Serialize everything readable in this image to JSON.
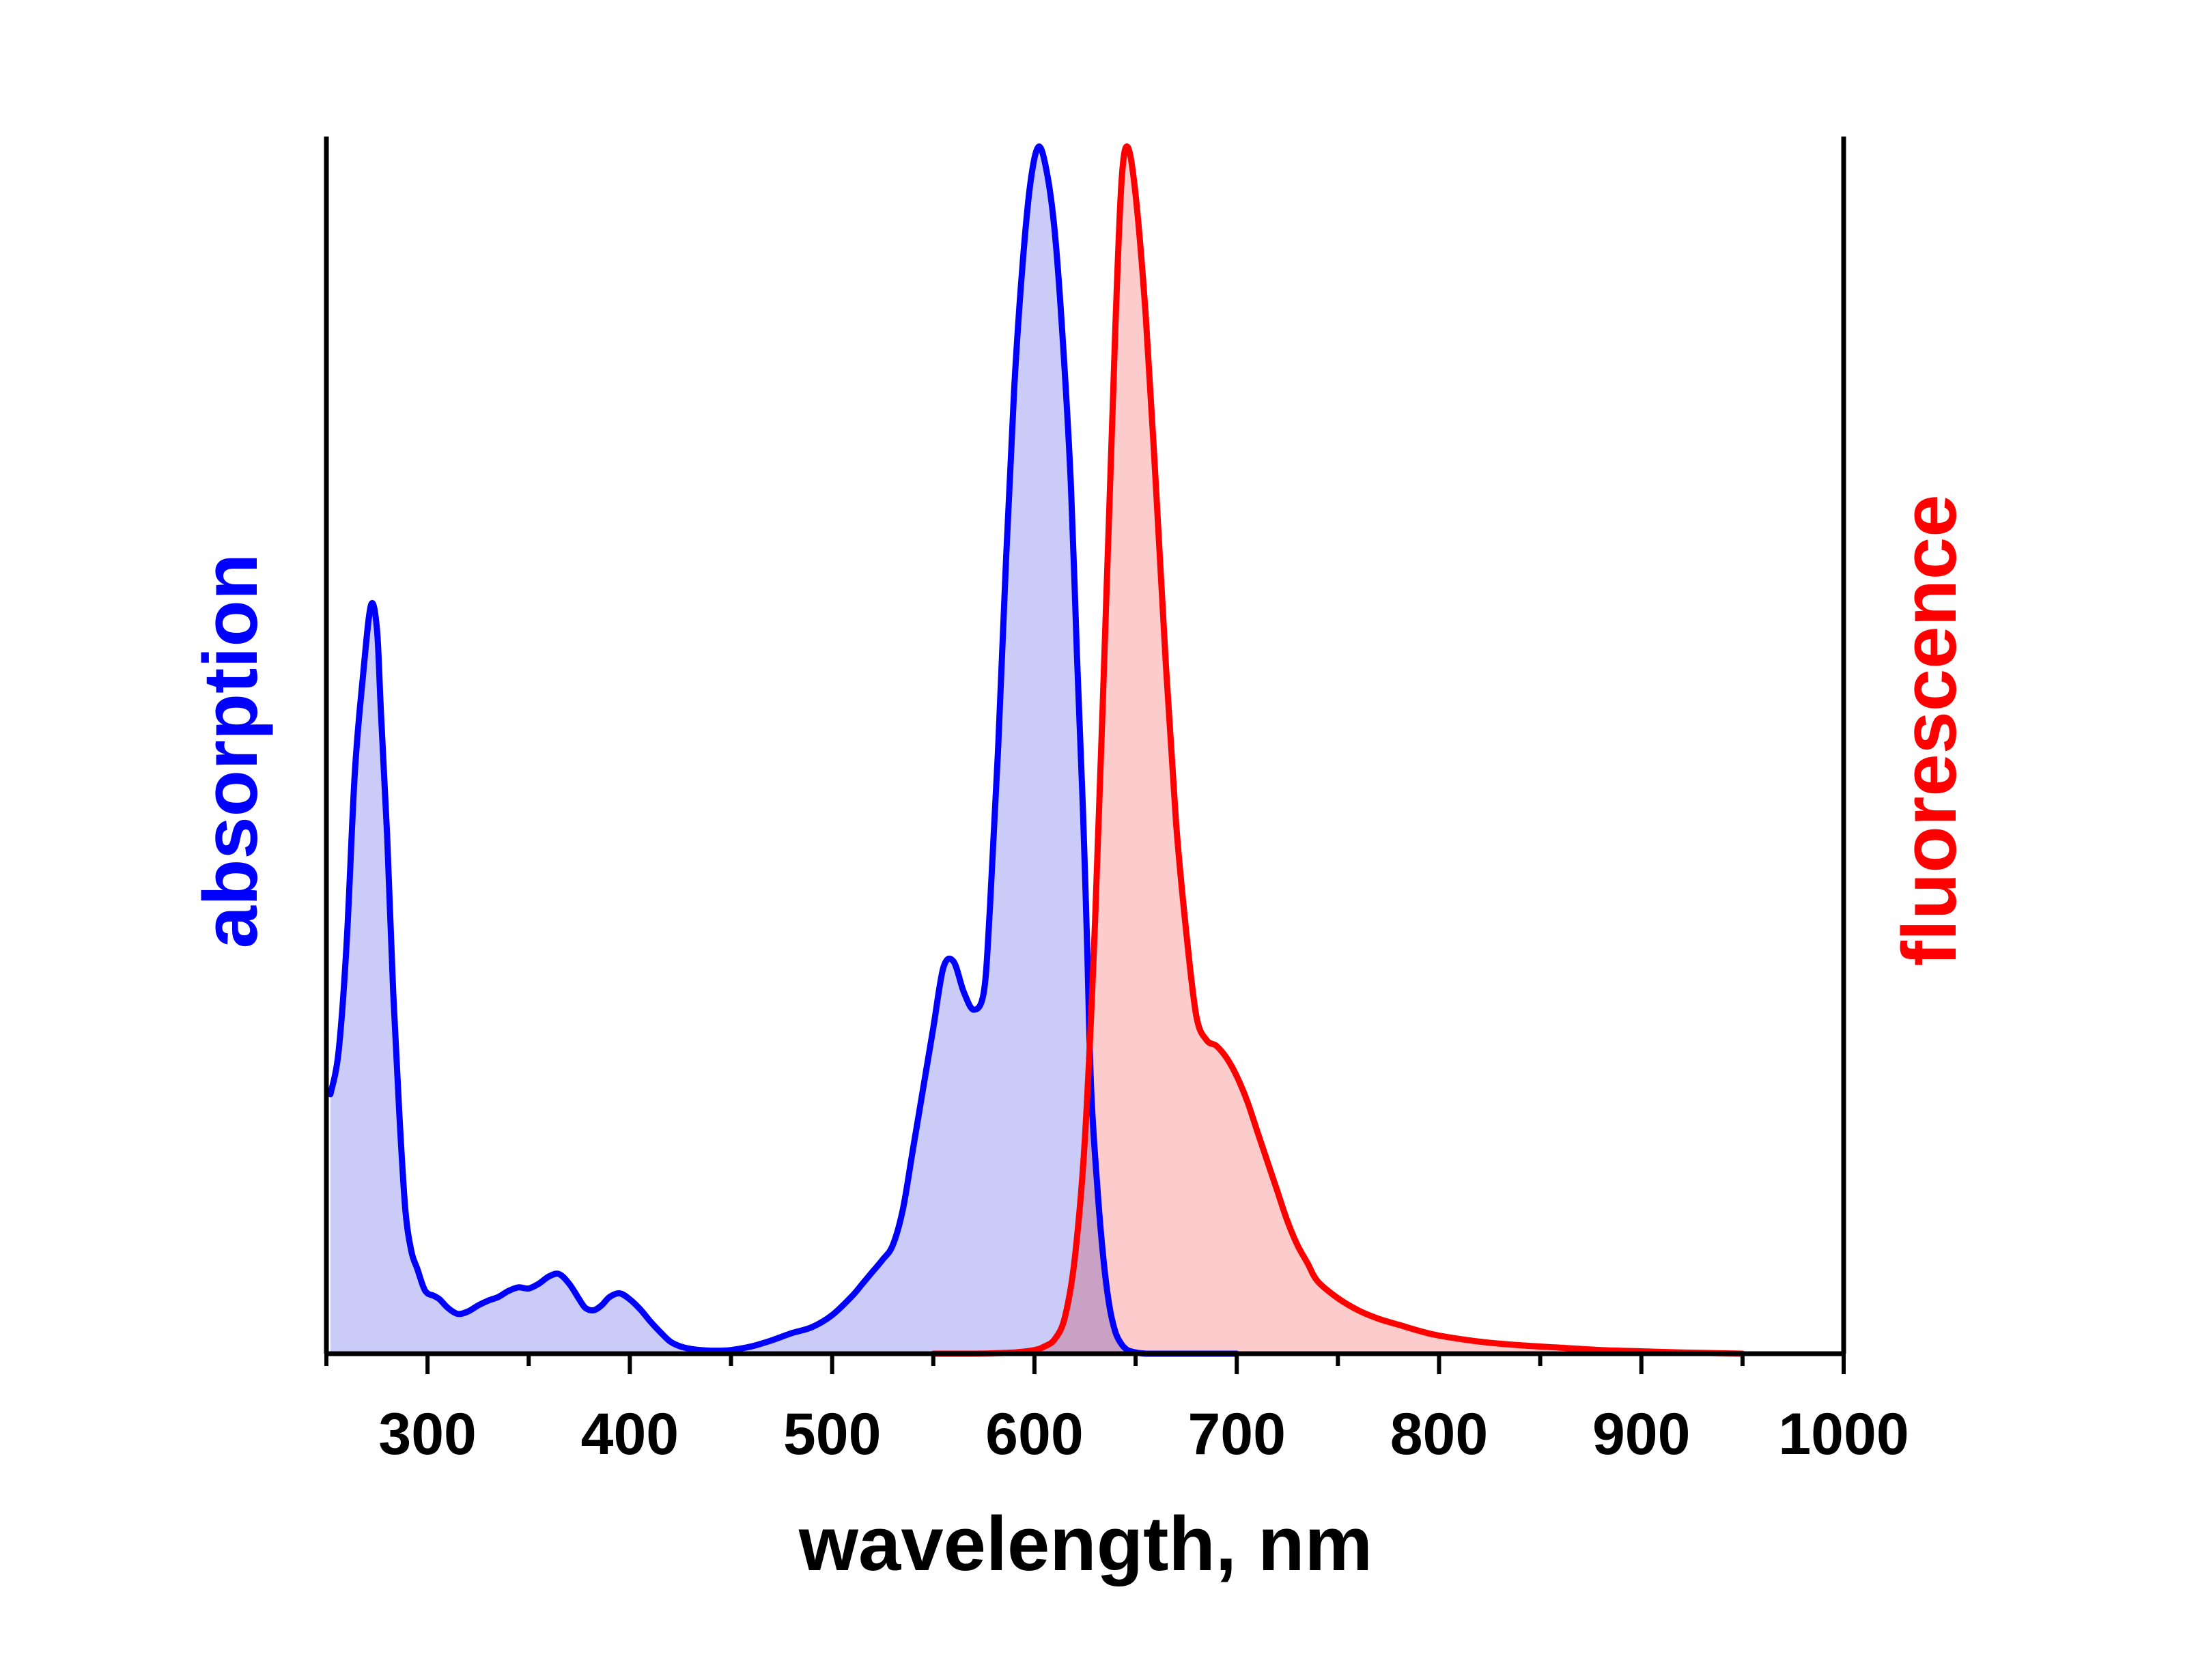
{
  "chart_data": {
    "type": "area",
    "xlabel": "wavelength, nm",
    "ylabel_left": "absorption",
    "ylabel_right": "fluorescence",
    "xlim": [
      250,
      1000
    ],
    "ylim": [
      0,
      1
    ],
    "x_ticks": [
      300,
      400,
      500,
      600,
      700,
      800,
      900,
      1000
    ],
    "y_ticks_shown": false,
    "grid": false,
    "series": [
      {
        "name": "absorption",
        "color": "#0000ff",
        "fill": "#c8c8f8",
        "x": [
          252,
          256,
          260,
          264,
          268,
          272,
          275,
          277,
          280,
          283,
          286,
          289,
          292,
          295,
          298,
          300,
          303,
          306,
          310,
          315,
          320,
          325,
          330,
          335,
          340,
          345,
          350,
          355,
          360,
          365,
          370,
          375,
          378,
          382,
          386,
          390,
          395,
          400,
          405,
          410,
          415,
          420,
          425,
          430,
          435,
          440,
          445,
          450,
          460,
          470,
          480,
          490,
          500,
          510,
          515,
          520,
          525,
          530,
          535,
          540,
          545,
          550,
          555,
          560,
          565,
          570,
          575,
          578,
          582,
          586,
          590,
          594,
          598,
          602,
          606,
          610,
          614,
          618,
          621,
          624,
          626,
          628,
          631,
          634,
          637,
          640,
          643,
          646,
          650,
          655,
          660,
          665,
          670,
          675,
          680,
          685,
          690,
          695,
          700
        ],
        "values": [
          0.215,
          0.25,
          0.34,
          0.48,
          0.56,
          0.62,
          0.6,
          0.53,
          0.43,
          0.3,
          0.2,
          0.12,
          0.085,
          0.07,
          0.055,
          0.05,
          0.048,
          0.045,
          0.038,
          0.033,
          0.035,
          0.04,
          0.044,
          0.047,
          0.052,
          0.055,
          0.054,
          0.058,
          0.064,
          0.066,
          0.058,
          0.045,
          0.038,
          0.036,
          0.04,
          0.047,
          0.05,
          0.045,
          0.037,
          0.027,
          0.018,
          0.01,
          0.006,
          0.004,
          0.003,
          0.0025,
          0.0025,
          0.003,
          0.006,
          0.011,
          0.017,
          0.022,
          0.032,
          0.048,
          0.058,
          0.068,
          0.078,
          0.09,
          0.12,
          0.17,
          0.22,
          0.27,
          0.32,
          0.325,
          0.3,
          0.285,
          0.3,
          0.37,
          0.5,
          0.66,
          0.8,
          0.9,
          0.97,
          1.0,
          0.98,
          0.93,
          0.84,
          0.72,
          0.58,
          0.45,
          0.34,
          0.22,
          0.14,
          0.08,
          0.04,
          0.018,
          0.008,
          0.003,
          0.001,
          0.0,
          0.0,
          0.0,
          0.0,
          0.0,
          0.0,
          0.0,
          0.0,
          0.0,
          0.0
        ]
      },
      {
        "name": "fluorescence",
        "color": "#ff0000",
        "fill": "#fcc8c8",
        "x": [
          550,
          570,
          590,
          600,
          605,
          610,
          615,
          620,
          625,
          630,
          635,
          640,
          643,
          646,
          650,
          655,
          660,
          665,
          670,
          675,
          680,
          685,
          690,
          695,
          700,
          705,
          710,
          715,
          720,
          725,
          730,
          735,
          740,
          750,
          760,
          770,
          780,
          790,
          800,
          820,
          840,
          860,
          880,
          900,
          920,
          950
        ],
        "values": [
          0.0,
          0.0,
          0.001,
          0.003,
          0.006,
          0.012,
          0.03,
          0.08,
          0.18,
          0.36,
          0.6,
          0.85,
          0.97,
          1.0,
          0.96,
          0.86,
          0.72,
          0.57,
          0.44,
          0.35,
          0.28,
          0.26,
          0.255,
          0.245,
          0.23,
          0.21,
          0.185,
          0.16,
          0.135,
          0.11,
          0.09,
          0.075,
          0.06,
          0.046,
          0.036,
          0.029,
          0.024,
          0.019,
          0.015,
          0.01,
          0.007,
          0.005,
          0.003,
          0.002,
          0.001,
          0.0
        ]
      }
    ]
  }
}
